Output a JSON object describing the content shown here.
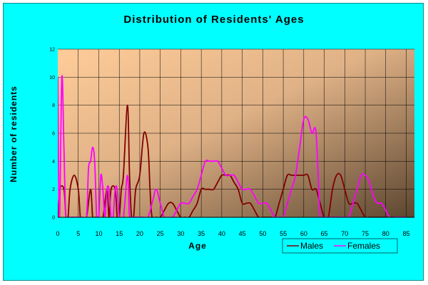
{
  "chart_data": {
    "type": "line",
    "title": "Distribution of Residents' Ages",
    "xlabel": "Age",
    "ylabel": "Number of residents",
    "xlim": [
      0,
      87
    ],
    "ylim": [
      0,
      12
    ],
    "x_ticks": [
      "0",
      "5",
      "10",
      "15",
      "20",
      "25",
      "30",
      "35",
      "40",
      "45",
      "50",
      "55",
      "60",
      "65",
      "70",
      "75",
      "80",
      "85"
    ],
    "y_ticks": [
      "0",
      "2",
      "4",
      "6",
      "8",
      "10",
      "12"
    ],
    "grid": true,
    "legend_position": "bottom-right",
    "background": "gradient peach to dark brown",
    "series": [
      {
        "name": "Males",
        "color": "#800000",
        "points": [
          [
            0,
            0
          ],
          [
            0.5,
            2
          ],
          [
            1.5,
            2
          ],
          [
            2,
            0
          ],
          [
            2.5,
            0
          ],
          [
            3,
            2
          ],
          [
            4,
            3
          ],
          [
            5,
            2
          ],
          [
            5.5,
            0
          ],
          [
            6,
            0
          ],
          [
            7,
            0
          ],
          [
            8,
            2
          ],
          [
            8.5,
            0
          ],
          [
            9,
            0
          ],
          [
            10,
            0
          ],
          [
            11,
            0
          ],
          [
            12,
            2
          ],
          [
            12.5,
            0
          ],
          [
            13,
            2
          ],
          [
            14,
            2
          ],
          [
            14.5,
            0
          ],
          [
            15,
            0
          ],
          [
            15.5,
            2
          ],
          [
            16,
            3
          ],
          [
            17,
            8
          ],
          [
            17.5,
            3
          ],
          [
            18,
            0
          ],
          [
            18.5,
            0
          ],
          [
            19,
            2
          ],
          [
            20,
            3
          ],
          [
            21,
            6
          ],
          [
            22,
            5
          ],
          [
            22.5,
            2
          ],
          [
            23,
            0
          ],
          [
            24,
            0
          ],
          [
            25,
            0
          ],
          [
            26,
            0.5
          ],
          [
            27,
            1
          ],
          [
            28,
            1
          ],
          [
            29,
            0.5
          ],
          [
            30,
            0
          ],
          [
            31,
            0
          ],
          [
            32,
            0
          ],
          [
            33,
            0.5
          ],
          [
            34,
            1
          ],
          [
            35,
            2
          ],
          [
            36,
            2
          ],
          [
            37,
            2
          ],
          [
            38,
            2
          ],
          [
            39,
            2.5
          ],
          [
            40,
            3
          ],
          [
            41,
            3
          ],
          [
            42,
            3
          ],
          [
            43,
            2.5
          ],
          [
            44,
            2
          ],
          [
            45,
            1
          ],
          [
            46,
            1
          ],
          [
            47,
            1
          ],
          [
            48,
            0.5
          ],
          [
            49,
            0
          ],
          [
            50,
            0
          ],
          [
            51,
            0
          ],
          [
            52,
            0
          ],
          [
            53,
            0
          ],
          [
            54,
            1
          ],
          [
            55,
            2
          ],
          [
            56,
            3
          ],
          [
            57,
            3
          ],
          [
            58,
            3
          ],
          [
            59,
            3
          ],
          [
            60,
            3
          ],
          [
            61,
            3
          ],
          [
            62,
            2
          ],
          [
            63,
            2
          ],
          [
            64,
            1
          ],
          [
            65,
            0
          ],
          [
            66,
            0
          ],
          [
            67,
            2
          ],
          [
            68,
            3
          ],
          [
            69,
            3
          ],
          [
            70,
            2
          ],
          [
            71,
            1
          ],
          [
            72,
            1
          ],
          [
            73,
            1
          ],
          [
            74,
            0.5
          ],
          [
            75,
            0
          ],
          [
            76,
            0
          ],
          [
            77,
            0
          ],
          [
            78,
            0
          ],
          [
            79,
            0
          ],
          [
            80,
            0
          ],
          [
            81,
            0
          ],
          [
            82,
            0
          ],
          [
            83,
            0
          ],
          [
            84,
            0
          ],
          [
            85,
            0
          ]
        ]
      },
      {
        "name": "Females",
        "color": "#ff00ff",
        "points": [
          [
            0,
            10
          ],
          [
            0.4,
            0
          ],
          [
            1,
            10
          ],
          [
            1.5,
            5
          ],
          [
            2,
            0
          ],
          [
            3,
            0
          ],
          [
            4,
            0
          ],
          [
            5,
            0
          ],
          [
            6,
            0
          ],
          [
            7,
            0
          ],
          [
            7.5,
            3.5
          ],
          [
            8,
            4
          ],
          [
            8.5,
            5
          ],
          [
            9,
            4
          ],
          [
            9.5,
            0
          ],
          [
            10,
            0
          ],
          [
            10.5,
            3
          ],
          [
            11,
            2
          ],
          [
            11.5,
            0
          ],
          [
            12,
            2
          ],
          [
            12.5,
            2
          ],
          [
            13,
            0
          ],
          [
            13.5,
            0
          ],
          [
            14,
            2
          ],
          [
            14.5,
            2
          ],
          [
            15,
            0
          ],
          [
            16,
            0
          ],
          [
            17,
            3
          ],
          [
            17.5,
            0
          ],
          [
            18,
            0
          ],
          [
            19,
            0
          ],
          [
            20,
            0
          ],
          [
            21,
            0
          ],
          [
            22,
            0
          ],
          [
            23,
            1
          ],
          [
            24,
            2
          ],
          [
            25,
            1
          ],
          [
            26,
            0
          ],
          [
            27,
            0
          ],
          [
            28,
            0
          ],
          [
            29,
            0.5
          ],
          [
            30,
            1
          ],
          [
            31,
            1
          ],
          [
            32,
            1
          ],
          [
            33,
            1.5
          ],
          [
            34,
            2
          ],
          [
            35,
            3
          ],
          [
            36,
            4
          ],
          [
            37,
            4
          ],
          [
            38,
            4
          ],
          [
            39,
            4
          ],
          [
            40,
            3.5
          ],
          [
            41,
            3
          ],
          [
            42,
            3
          ],
          [
            43,
            3
          ],
          [
            44,
            2.5
          ],
          [
            45,
            2
          ],
          [
            46,
            2
          ],
          [
            47,
            2
          ],
          [
            48,
            1.5
          ],
          [
            49,
            1
          ],
          [
            50,
            1
          ],
          [
            51,
            1
          ],
          [
            52,
            0.5
          ],
          [
            53,
            0
          ],
          [
            54,
            0
          ],
          [
            55,
            0
          ],
          [
            56,
            1
          ],
          [
            57,
            2
          ],
          [
            58,
            3
          ],
          [
            59,
            5
          ],
          [
            60,
            7
          ],
          [
            61,
            7
          ],
          [
            62,
            6
          ],
          [
            63,
            6
          ],
          [
            64,
            0
          ],
          [
            65,
            0
          ],
          [
            66,
            0
          ],
          [
            67,
            0
          ],
          [
            68,
            0
          ],
          [
            69,
            0
          ],
          [
            70,
            0
          ],
          [
            71,
            0
          ],
          [
            72,
            1
          ],
          [
            73,
            2
          ],
          [
            74,
            3
          ],
          [
            75,
            3
          ],
          [
            76,
            2.5
          ],
          [
            77,
            1.5
          ],
          [
            78,
            1
          ],
          [
            79,
            1
          ],
          [
            80,
            0.5
          ],
          [
            81,
            0
          ],
          [
            82,
            0
          ],
          [
            83,
            0
          ],
          [
            84,
            0
          ],
          [
            85,
            0
          ]
        ]
      }
    ]
  }
}
